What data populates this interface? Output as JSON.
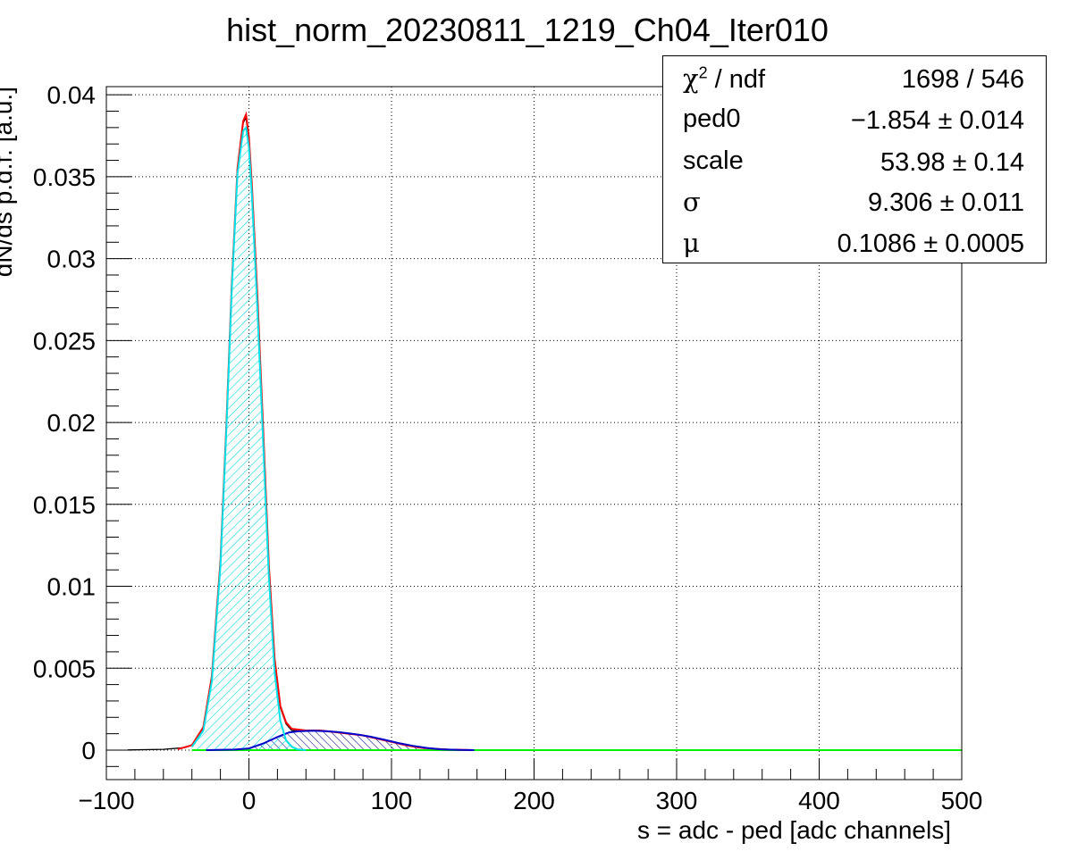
{
  "chart_data": {
    "type": "line",
    "title": "hist_norm_20230811_1219_Ch04_Iter010",
    "xlabel": "s = adc - ped [adc channels]",
    "ylabel": "dN/ds p.d.f. [a.u.]",
    "xlim": [
      -100,
      500
    ],
    "ylim": [
      -0.0018,
      0.0405
    ],
    "grid": true,
    "xticks": [
      -100,
      0,
      100,
      200,
      300,
      400,
      500
    ],
    "xtick_labels": [
      "−100",
      "0",
      "100",
      "200",
      "300",
      "400",
      "500"
    ],
    "yticks": [
      0,
      0.005,
      0.01,
      0.015,
      0.02,
      0.025,
      0.03,
      0.035,
      0.04
    ],
    "ytick_labels": [
      "0",
      "0.005",
      "0.01",
      "0.015",
      "0.02",
      "0.025",
      "0.03",
      "0.035",
      "0.04"
    ],
    "colors": {
      "histogram": "#000000",
      "total_fit": "#ff0000",
      "pedestal_component": "#00e0e8",
      "signal_component": "#0000cc",
      "baseline": "#00ee00"
    },
    "series": [
      {
        "role": "histogram",
        "x": [
          -85,
          -60,
          -45,
          -38,
          -32,
          -26,
          -20,
          -16,
          -12,
          -8,
          -4,
          -2,
          0,
          2,
          6,
          10,
          14,
          18,
          22,
          26,
          30,
          40,
          50,
          60,
          70,
          80,
          90,
          100,
          110,
          120,
          130,
          140,
          150,
          158
        ],
        "y": [
          1e-05,
          5e-05,
          0.00015,
          0.0004,
          0.0014,
          0.0045,
          0.0115,
          0.0195,
          0.0285,
          0.0355,
          0.0383,
          0.0386,
          0.0372,
          0.0345,
          0.0275,
          0.0195,
          0.0112,
          0.0055,
          0.0026,
          0.0016,
          0.0012,
          0.00115,
          0.0012,
          0.0011,
          0.001,
          0.0009,
          0.0007,
          0.0005,
          0.0003,
          0.00015,
          8e-05,
          3e-05,
          1e-05,
          0.0
        ]
      },
      {
        "role": "total_fit",
        "x": [
          -50,
          -40,
          -32,
          -26,
          -20,
          -16,
          -12,
          -8,
          -4,
          -2,
          0,
          2,
          6,
          10,
          14,
          18,
          22,
          26,
          30,
          40,
          50,
          60,
          70,
          80,
          90,
          100,
          110,
          120,
          130,
          140,
          150,
          158
        ],
        "y": [
          5e-05,
          0.0003,
          0.0014,
          0.0045,
          0.0115,
          0.0195,
          0.0285,
          0.0355,
          0.0384,
          0.0388,
          0.0374,
          0.0346,
          0.0276,
          0.0196,
          0.0113,
          0.0056,
          0.0027,
          0.0017,
          0.0013,
          0.0012,
          0.0012,
          0.0011,
          0.001,
          0.0009,
          0.0007,
          0.0005,
          0.0003,
          0.00015,
          8e-05,
          3e-05,
          1e-05,
          0.0
        ]
      },
      {
        "role": "pedestal_component",
        "x": [
          -40,
          -32,
          -26,
          -20,
          -16,
          -12,
          -8,
          -4,
          -2,
          0,
          2,
          6,
          10,
          14,
          18,
          22,
          26,
          30,
          34,
          40
        ],
        "y": [
          0.0002,
          0.0012,
          0.0042,
          0.0112,
          0.0192,
          0.0282,
          0.0352,
          0.0378,
          0.038,
          0.0368,
          0.034,
          0.0268,
          0.0188,
          0.0106,
          0.0048,
          0.0018,
          0.0006,
          0.0002,
          5e-05,
          0.0
        ]
      },
      {
        "role": "signal_component",
        "x": [
          -30,
          -10,
          0,
          10,
          20,
          28,
          35,
          45,
          55,
          65,
          75,
          85,
          95,
          105,
          115,
          125,
          135,
          145,
          158
        ],
        "y": [
          0.0,
          3e-05,
          0.0001,
          0.0004,
          0.0008,
          0.00108,
          0.00115,
          0.00118,
          0.00115,
          0.00108,
          0.00097,
          0.00082,
          0.00063,
          0.00043,
          0.00026,
          0.00013,
          5e-05,
          2e-05,
          0.0
        ]
      }
    ]
  },
  "stats_box": [
    {
      "name_greek": "χ",
      "name_sup": "2",
      "name": " / ndf",
      "value": "1698 / 546"
    },
    {
      "name_greek": "",
      "name_sup": "",
      "name": "ped0",
      "value": "−1.854 ± 0.014"
    },
    {
      "name_greek": "",
      "name_sup": "",
      "name": "scale",
      "value": "53.98 ± 0.14"
    },
    {
      "name_greek": "σ",
      "name_sup": "",
      "name": "",
      "value": "9.306 ± 0.011"
    },
    {
      "name_greek": "μ",
      "name_sup": "",
      "name": "",
      "value": "0.1086 ± 0.0005"
    }
  ]
}
